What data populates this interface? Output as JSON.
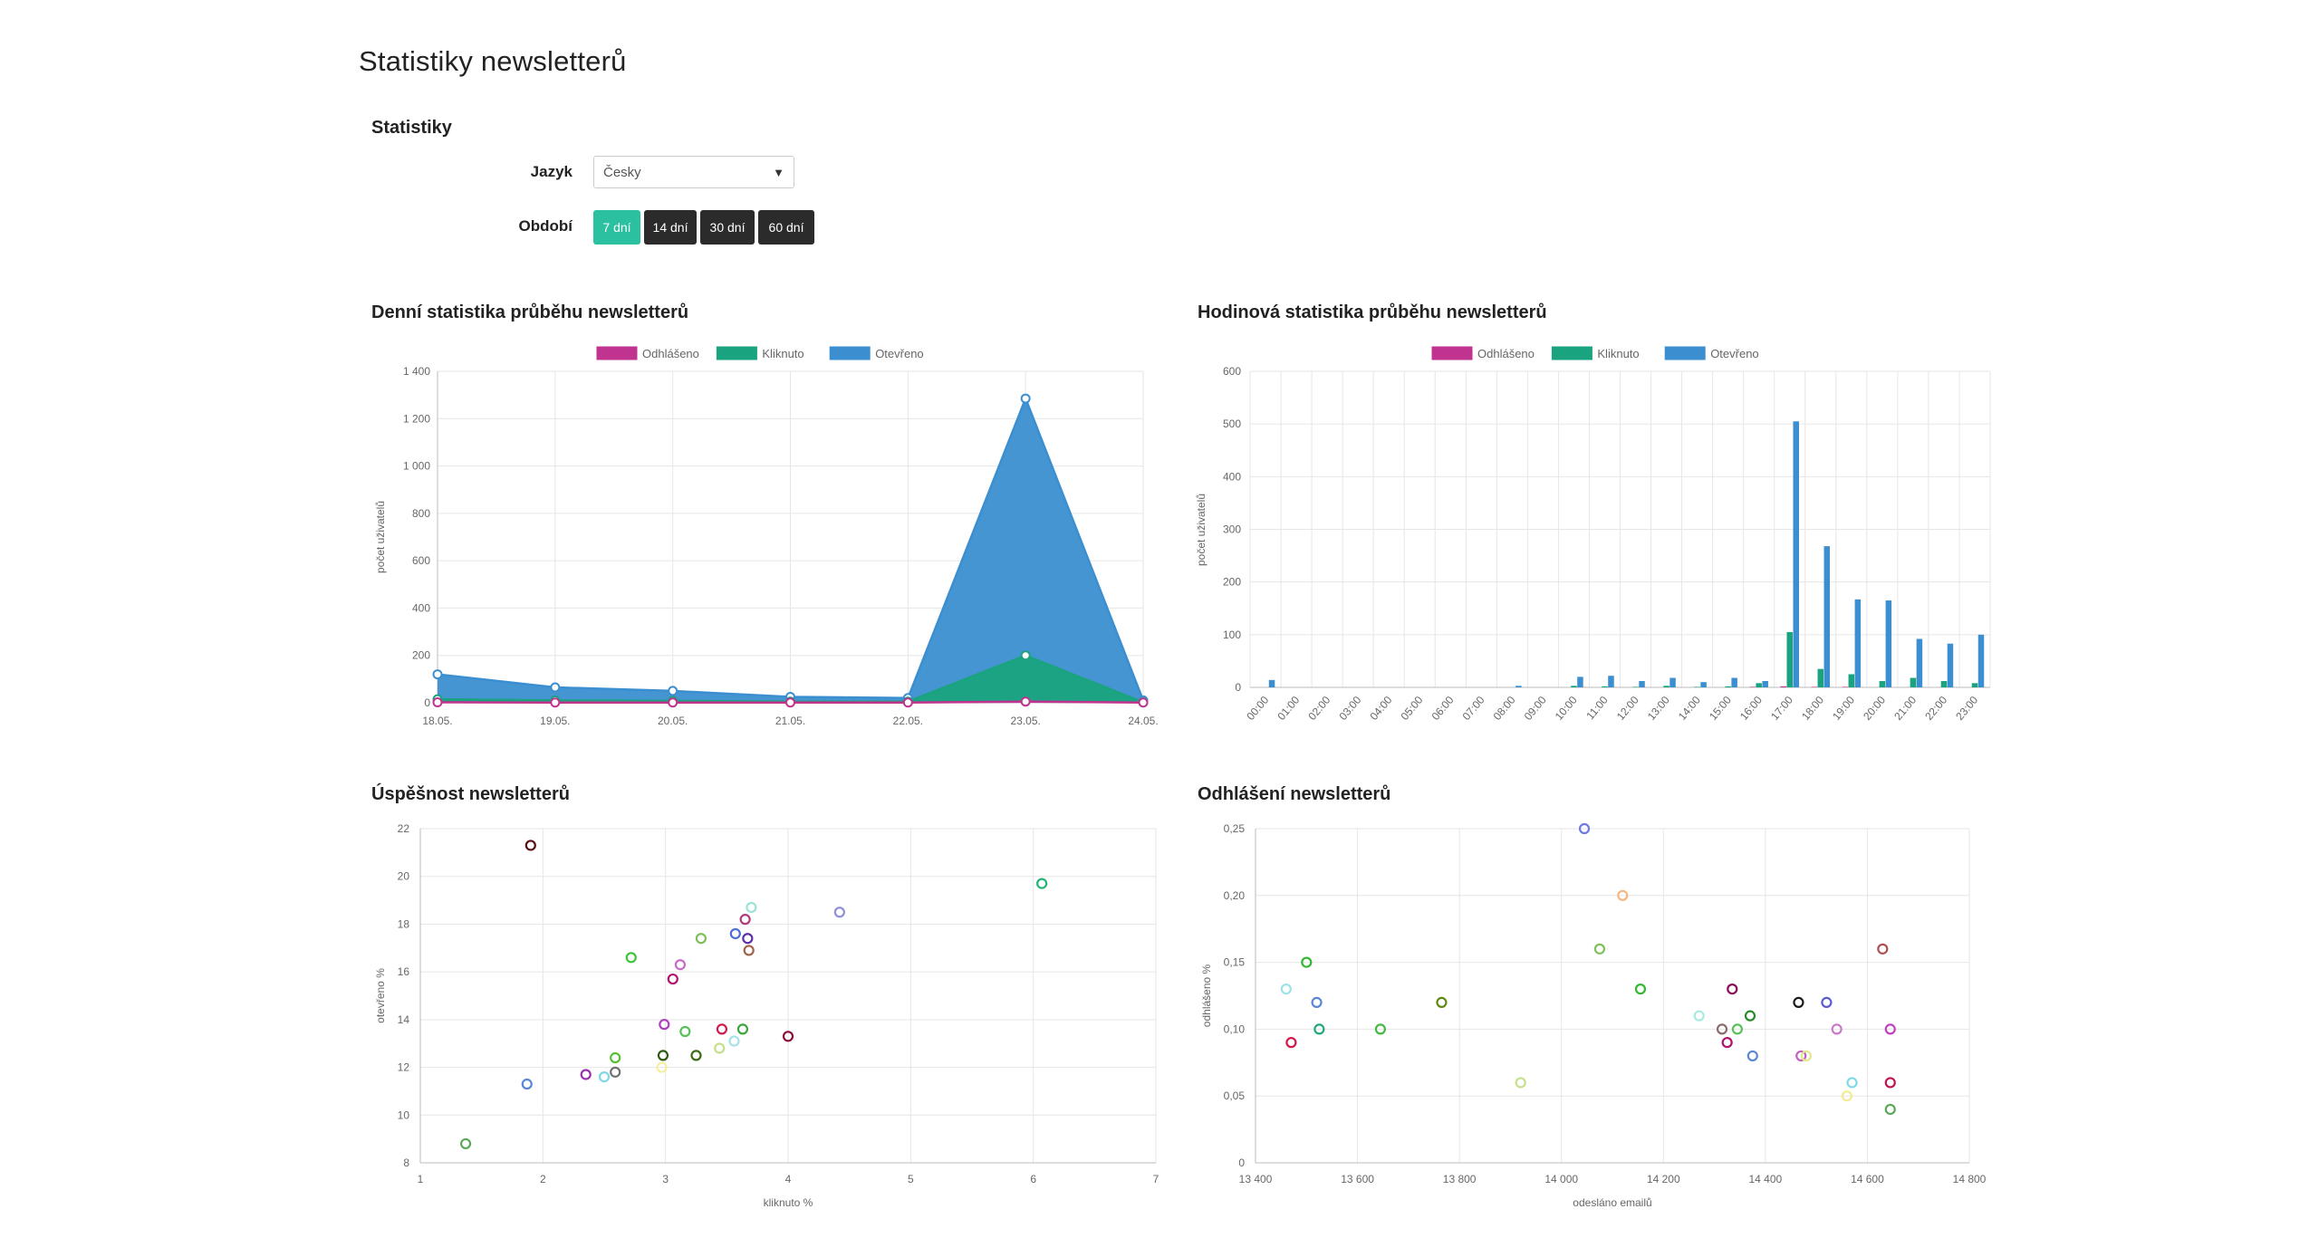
{
  "page": {
    "title": "Statistiky newsletterů",
    "section_title": "Statistiky",
    "language_label": "Jazyk",
    "language_value": "Česky",
    "period_label": "Období",
    "period_buttons": [
      "7 dní",
      "14 dní",
      "30 dní",
      "60 dní"
    ],
    "period_active": 0,
    "active_color": "#2bc0a0"
  },
  "chart_data": [
    {
      "id": "daily",
      "title": "Denní statistika průběhu newsletterů",
      "type": "area",
      "x": [
        "18.05.",
        "19.05.",
        "20.05.",
        "21.05.",
        "22.05.",
        "23.05.",
        "24.05."
      ],
      "ylabel": "počet uživatelů",
      "ylim": [
        0,
        1400
      ],
      "yticks": [
        0,
        200,
        400,
        600,
        800,
        1000,
        1200,
        1400
      ],
      "ytick_labels": [
        "0",
        "200",
        "400",
        "600",
        "800",
        "1 000",
        "1 200",
        "1 400"
      ],
      "legend_position": "top-center",
      "grid": true,
      "series": [
        {
          "name": "Odhlášeno",
          "color": "#c0338f",
          "values": [
            2,
            1,
            1,
            1,
            1,
            5,
            1
          ]
        },
        {
          "name": "Kliknuto",
          "color": "#1aa37f",
          "values": [
            15,
            10,
            8,
            5,
            5,
            200,
            2
          ]
        },
        {
          "name": "Otevřeno",
          "color": "#3b8fd0",
          "values": [
            120,
            65,
            50,
            25,
            20,
            1285,
            10
          ]
        }
      ]
    },
    {
      "id": "hourly",
      "title": "Hodinová statistika průběhu newsletterů",
      "type": "bar",
      "categories": [
        "00:00",
        "01:00",
        "02:00",
        "03:00",
        "04:00",
        "05:00",
        "06:00",
        "07:00",
        "08:00",
        "09:00",
        "10:00",
        "11:00",
        "12:00",
        "13:00",
        "14:00",
        "15:00",
        "16:00",
        "17:00",
        "18:00",
        "19:00",
        "20:00",
        "21:00",
        "22:00",
        "23:00"
      ],
      "ylabel": "počet uživatelů",
      "ylim": [
        0,
        600
      ],
      "yticks": [
        0,
        100,
        200,
        300,
        400,
        500,
        600
      ],
      "legend_position": "top-center",
      "grid": true,
      "series": [
        {
          "name": "Odhlášeno",
          "color": "#c0338f",
          "values": [
            0,
            0,
            0,
            0,
            0,
            0,
            0,
            0,
            0,
            0,
            0,
            0,
            0,
            0,
            0,
            0,
            1,
            2,
            1,
            1,
            0,
            0,
            0,
            0
          ]
        },
        {
          "name": "Kliknuto",
          "color": "#1aa37f",
          "values": [
            0,
            0,
            0,
            0,
            0,
            0,
            0,
            0,
            0,
            0,
            3,
            2,
            1,
            3,
            1,
            2,
            8,
            105,
            35,
            25,
            12,
            18,
            12,
            8
          ]
        },
        {
          "name": "Otevřeno",
          "color": "#3b8fd0",
          "values": [
            14,
            0,
            0,
            0,
            0,
            0,
            0,
            0,
            3,
            0,
            20,
            22,
            12,
            18,
            10,
            18,
            12,
            505,
            268,
            167,
            165,
            92,
            83,
            100
          ]
        }
      ]
    },
    {
      "id": "success",
      "title": "Úspěšnost newsletterů",
      "type": "scatter",
      "xlabel": "kliknuto %",
      "ylabel": "otevřeno %",
      "xlim": [
        1,
        7
      ],
      "ylim": [
        8,
        22
      ],
      "xticks": [
        1,
        2,
        3,
        4,
        5,
        6,
        7
      ],
      "yticks": [
        8,
        10,
        12,
        14,
        16,
        18,
        20,
        22
      ],
      "grid": true,
      "points": [
        {
          "x": 1.9,
          "y": 21.3,
          "color": "#5a0a12"
        },
        {
          "x": 6.07,
          "y": 19.7,
          "color": "#22b573"
        },
        {
          "x": 4.42,
          "y": 18.5,
          "color": "#8f8fdc"
        },
        {
          "x": 3.7,
          "y": 18.7,
          "color": "#9be3d6"
        },
        {
          "x": 3.65,
          "y": 18.2,
          "color": "#b03a7a"
        },
        {
          "x": 3.57,
          "y": 17.6,
          "color": "#4f6ed6"
        },
        {
          "x": 3.67,
          "y": 17.4,
          "color": "#5a2fa8"
        },
        {
          "x": 3.29,
          "y": 17.4,
          "color": "#7ec05a"
        },
        {
          "x": 3.68,
          "y": 16.9,
          "color": "#a0604a"
        },
        {
          "x": 2.72,
          "y": 16.6,
          "color": "#3bc43b"
        },
        {
          "x": 3.12,
          "y": 16.3,
          "color": "#c86ac8"
        },
        {
          "x": 3.06,
          "y": 15.7,
          "color": "#b0126e"
        },
        {
          "x": 2.99,
          "y": 13.8,
          "color": "#b040c0"
        },
        {
          "x": 3.16,
          "y": 13.5,
          "color": "#58c058"
        },
        {
          "x": 3.46,
          "y": 13.6,
          "color": "#d11a4a"
        },
        {
          "x": 3.63,
          "y": 13.6,
          "color": "#3aa63a"
        },
        {
          "x": 4.0,
          "y": 13.3,
          "color": "#8a0c36"
        },
        {
          "x": 2.98,
          "y": 12.5,
          "color": "#2d5a12"
        },
        {
          "x": 3.25,
          "y": 12.5,
          "color": "#3a6a12"
        },
        {
          "x": 3.44,
          "y": 12.8,
          "color": "#c4e08a"
        },
        {
          "x": 3.56,
          "y": 13.1,
          "color": "#a8e0e8"
        },
        {
          "x": 2.97,
          "y": 12.0,
          "color": "#f4f0a0"
        },
        {
          "x": 2.59,
          "y": 12.4,
          "color": "#58c030"
        },
        {
          "x": 2.35,
          "y": 11.7,
          "color": "#9b2fb0"
        },
        {
          "x": 2.5,
          "y": 11.6,
          "color": "#7fd8e8"
        },
        {
          "x": 2.59,
          "y": 11.8,
          "color": "#707070"
        },
        {
          "x": 1.87,
          "y": 11.3,
          "color": "#5a86d6"
        },
        {
          "x": 1.37,
          "y": 8.8,
          "color": "#58a858"
        }
      ]
    },
    {
      "id": "unsub",
      "title": "Odhlášení newsletterů",
      "type": "scatter",
      "xlabel": "odesláno emailů",
      "ylabel": "odhlášeno %",
      "xlim": [
        13400,
        14800
      ],
      "ylim": [
        0,
        0.25
      ],
      "xticks": [
        13400,
        13600,
        13800,
        14000,
        14200,
        14400,
        14600,
        14800
      ],
      "xtick_labels": [
        "13 400",
        "13 600",
        "13 800",
        "14 000",
        "14 200",
        "14 400",
        "14 600",
        "14 800"
      ],
      "yticks": [
        0,
        0.05,
        0.1,
        0.15,
        0.2,
        0.25
      ],
      "ytick_labels": [
        "0",
        "0,05",
        "0,10",
        "0,15",
        "0,20",
        "0,25"
      ],
      "grid": true,
      "points": [
        {
          "x": 14045,
          "y": 0.25,
          "color": "#6f7ae0"
        },
        {
          "x": 14120,
          "y": 0.2,
          "color": "#f5b680"
        },
        {
          "x": 14075,
          "y": 0.16,
          "color": "#7ec05a"
        },
        {
          "x": 13500,
          "y": 0.15,
          "color": "#33b833"
        },
        {
          "x": 14155,
          "y": 0.13,
          "color": "#33b833"
        },
        {
          "x": 13460,
          "y": 0.13,
          "color": "#9be3e6"
        },
        {
          "x": 13520,
          "y": 0.12,
          "color": "#5a86d6"
        },
        {
          "x": 13765,
          "y": 0.12,
          "color": "#5a8a12"
        },
        {
          "x": 13525,
          "y": 0.1,
          "color": "#22a878"
        },
        {
          "x": 13645,
          "y": 0.1,
          "color": "#44b844"
        },
        {
          "x": 13470,
          "y": 0.09,
          "color": "#d11a4a"
        },
        {
          "x": 13920,
          "y": 0.06,
          "color": "#c4e08a"
        },
        {
          "x": 14335,
          "y": 0.13,
          "color": "#8a0c56"
        },
        {
          "x": 14465,
          "y": 0.12,
          "color": "#1a1a1a"
        },
        {
          "x": 14520,
          "y": 0.12,
          "color": "#5a5ad6"
        },
        {
          "x": 14370,
          "y": 0.11,
          "color": "#2a8a2a"
        },
        {
          "x": 14270,
          "y": 0.11,
          "color": "#a8ece0"
        },
        {
          "x": 14315,
          "y": 0.1,
          "color": "#8a6a6a"
        },
        {
          "x": 14345,
          "y": 0.1,
          "color": "#58c058"
        },
        {
          "x": 14325,
          "y": 0.09,
          "color": "#b0126e"
        },
        {
          "x": 14375,
          "y": 0.08,
          "color": "#5a86d6"
        },
        {
          "x": 14470,
          "y": 0.08,
          "color": "#c060c0"
        },
        {
          "x": 14480,
          "y": 0.08,
          "color": "#e0e88a"
        },
        {
          "x": 14540,
          "y": 0.1,
          "color": "#c87ac8"
        },
        {
          "x": 14630,
          "y": 0.16,
          "color": "#b05050"
        },
        {
          "x": 14645,
          "y": 0.1,
          "color": "#c040c0"
        },
        {
          "x": 14570,
          "y": 0.06,
          "color": "#7fd8e8"
        },
        {
          "x": 14560,
          "y": 0.05,
          "color": "#f4ea90"
        },
        {
          "x": 14645,
          "y": 0.06,
          "color": "#c0124a"
        },
        {
          "x": 14645,
          "y": 0.04,
          "color": "#58a858"
        }
      ]
    }
  ]
}
